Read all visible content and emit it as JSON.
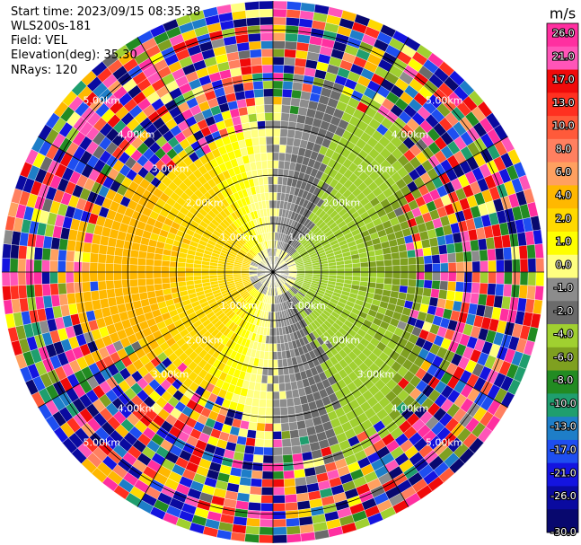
{
  "header": {
    "start_time": "Start time: 2023/09/15 08:35:38",
    "instrument": "WLS200s-181",
    "field": "Field: VEL",
    "elevation": "Elevation(deg): 35.30",
    "nrays": "NRays: 120"
  },
  "chart_data": {
    "type": "heatmap",
    "projection": "polar-ppi",
    "field": "VEL",
    "unit": "m/s",
    "nrays": 120,
    "range_rings_km": [
      1.0,
      2.0,
      3.0,
      4.0,
      5.0
    ],
    "ring_labels": [
      "1.00km",
      "2.00km",
      "3.00km",
      "4.00km",
      "5.00km"
    ],
    "max_range_km": 5.6,
    "colorbar": {
      "label": "m/s",
      "ticks": [
        "26.0",
        "21.0",
        "17.0",
        "13.0",
        "10.0",
        "8.0",
        "6.0",
        "4.0",
        "2.0",
        "1.0",
        "0.0",
        "-1.0",
        "-2.0",
        "-4.0",
        "-6.0",
        "-8.0",
        "-10.0",
        "-13.0",
        "-17.0",
        "-21.0",
        "-26.0",
        "-30.0"
      ],
      "bounds": [
        30,
        26,
        21,
        17,
        13,
        10,
        8,
        6,
        4,
        2,
        1,
        0,
        -1,
        -2,
        -4,
        -6,
        -8,
        -10,
        -13,
        -17,
        -21,
        -26,
        -30
      ],
      "colors": [
        "#ff2fa0",
        "#ff55b8",
        "#f00a0a",
        "#ff3020",
        "#ff5a3a",
        "#ff8060",
        "#ffa060",
        "#ffb800",
        "#ffd900",
        "#ffff00",
        "#ffff80",
        "#8c8c8c",
        "#6b6b6b",
        "#a0d030",
        "#7fa020",
        "#228b22",
        "#1f9e6e",
        "#1e7ec8",
        "#1e4ef0",
        "#1414e0",
        "#0a0aa0",
        "#08086e"
      ]
    }
  }
}
